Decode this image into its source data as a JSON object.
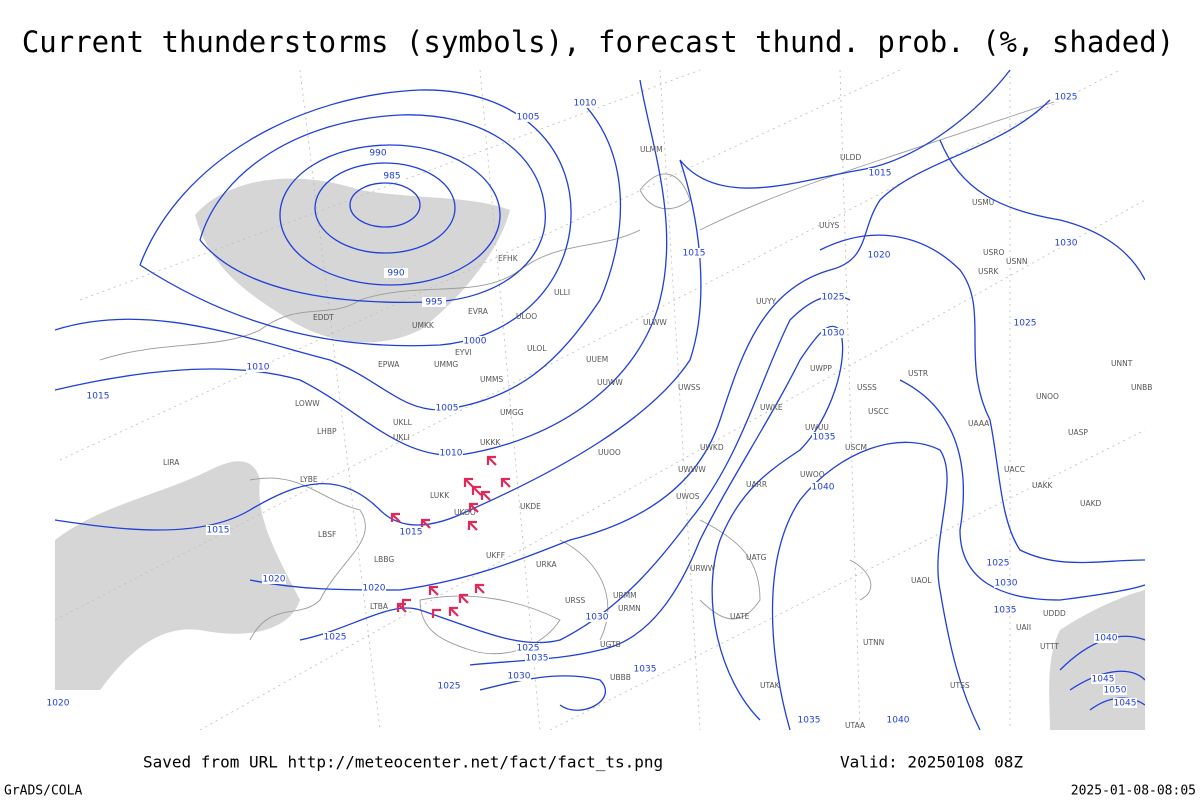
{
  "title": "Current thunderstorms (symbols), forecast thund. prob. (%, shaded)",
  "footer": {
    "source": "Saved from URL http://meteocenter.net/fact/fact_ts.png",
    "valid": "Valid: 20250108 08Z",
    "software": "GrADS/COLA",
    "timestamp": "2025-01-08-08:05"
  },
  "isobar_labels": [
    "1010",
    "1005",
    "990",
    "985",
    "990",
    "995",
    "1000",
    "1005",
    "1010",
    "1015",
    "1020",
    "1025",
    "1025",
    "1030",
    "1025",
    "1035",
    "1030",
    "1035",
    "1010",
    "1015",
    "1015",
    "1020",
    "1015",
    "1015",
    "1020",
    "1025",
    "1030",
    "1035",
    "1040",
    "1025",
    "1030",
    "1025",
    "1025",
    "1030",
    "1035",
    "1040",
    "1045",
    "1050",
    "1045",
    "1035",
    "1040",
    "1020"
  ],
  "station_labels": [
    "ULMM",
    "ULOO",
    "ULOL",
    "ULLI",
    "EFHK",
    "EVRA",
    "EDDT",
    "UMKK",
    "EYVI",
    "UMMG",
    "EPWA",
    "UMMS",
    "UMGG",
    "UUEM",
    "UUWW",
    "ULWW",
    "UUOO",
    "UKKK",
    "UKLL",
    "UKLI",
    "LUKK",
    "UKOO",
    "UKDE",
    "UKFF",
    "LHBP",
    "LOWW",
    "LIRA",
    "LYBE",
    "LBSF",
    "LBBG",
    "LTBA",
    "URSS",
    "URMM",
    "URMN",
    "URKA",
    "UGTB",
    "UBBB",
    "UTAK",
    "UATE",
    "UATG",
    "URWW",
    "UWWW",
    "UWKD",
    "USSS",
    "USCC",
    "USCM",
    "USTR",
    "UNOO",
    "USMU",
    "USRO",
    "USRK",
    "USNN",
    "UAAA",
    "UACC",
    "UAKK",
    "UAKD",
    "UTTT",
    "UTSS",
    "UTAA",
    "UDDD",
    "UAII",
    "ULDD",
    "UUYS",
    "UUYY",
    "UNNT",
    "UNBB",
    "UASP",
    "UTNN",
    "UAOL",
    "UWOO",
    "UWPP",
    "UWUU",
    "UWKE",
    "UWOS",
    "UWSS",
    "UARR"
  ]
}
